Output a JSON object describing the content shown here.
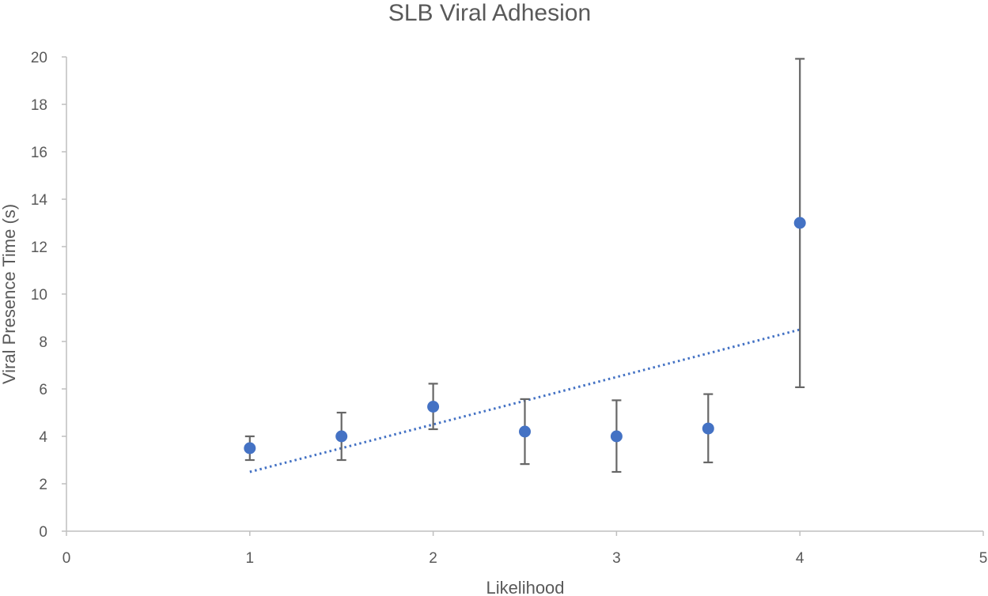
{
  "chart_data": {
    "type": "scatter",
    "title": "SLB Viral Adhesion",
    "xlabel": "Likelihood",
    "ylabel": "Viral Presence Time (s)",
    "xlim": [
      0,
      5
    ],
    "ylim": [
      0,
      20
    ],
    "x_ticks": [
      "0",
      "1",
      "2",
      "3",
      "4",
      "5"
    ],
    "y_ticks": [
      "0",
      "2",
      "4",
      "6",
      "8",
      "10",
      "12",
      "14",
      "16",
      "18",
      "20"
    ],
    "grid": false,
    "legend": "none",
    "colors": {
      "marker": "#4472c4",
      "errorbar": "#666666",
      "axis": "#bfbfbf",
      "text": "#595959",
      "trendline": "#4472c4"
    },
    "series": [
      {
        "x": [
          1,
          1.5,
          2,
          2.5,
          3,
          3.5,
          4
        ],
        "y": [
          3.5,
          4.0,
          5.25,
          4.2,
          4.0,
          4.33,
          13.0
        ],
        "error_low": [
          3.0,
          3.0,
          4.3,
          2.83,
          2.5,
          2.9,
          6.07
        ],
        "error_high": [
          4.0,
          5.0,
          6.22,
          5.57,
          5.52,
          5.78,
          19.92
        ]
      }
    ],
    "trendline": {
      "style": "dotted",
      "type": "linear",
      "x": [
        1,
        4
      ],
      "y": [
        2.5,
        8.5
      ]
    }
  }
}
